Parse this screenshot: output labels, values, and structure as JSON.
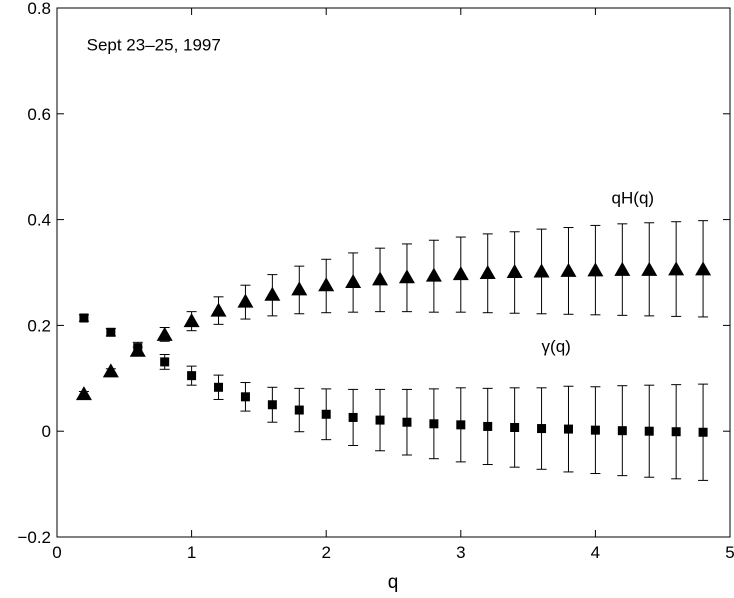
{
  "chart_data": {
    "type": "scatter",
    "title": "",
    "xlabel": "q",
    "ylabel": "",
    "xlim": [
      0,
      5
    ],
    "ylim": [
      -0.2,
      0.8
    ],
    "grid": false,
    "x_ticks": [
      0,
      1,
      2,
      3,
      4,
      5
    ],
    "x_tick_labels": [
      "0",
      "1",
      "2",
      "3",
      "4",
      "5"
    ],
    "y_ticks": [
      -0.2,
      0,
      0.2,
      0.4,
      0.6,
      0.8
    ],
    "y_tick_labels": [
      "−0.2",
      "0",
      "0.2",
      "0.4",
      "0.6",
      "0.8"
    ],
    "annotations": [
      {
        "text": "Sept 23–25, 1997",
        "x": 0.22,
        "y": 0.72
      },
      {
        "text": "qH(q)",
        "x": 4.12,
        "y": 0.43
      },
      {
        "text": "γ(q)",
        "x": 3.6,
        "y": 0.15
      }
    ],
    "x": [
      0.2,
      0.4,
      0.6,
      0.8,
      1.0,
      1.2,
      1.4,
      1.6,
      1.8,
      2.0,
      2.2,
      2.4,
      2.6,
      2.8,
      3.0,
      3.2,
      3.4,
      3.6,
      3.8,
      4.0,
      4.2,
      4.4,
      4.6,
      4.8
    ],
    "series": [
      {
        "name": "qH(q)",
        "marker": "triangle",
        "values": [
          0.07,
          0.113,
          0.152,
          0.182,
          0.208,
          0.228,
          0.245,
          0.258,
          0.268,
          0.276,
          0.282,
          0.287,
          0.291,
          0.294,
          0.297,
          0.299,
          0.301,
          0.302,
          0.303,
          0.304,
          0.305,
          0.305,
          0.306,
          0.306
        ],
        "err_low": [
          0.065,
          0.108,
          0.145,
          0.17,
          0.19,
          0.202,
          0.212,
          0.218,
          0.222,
          0.224,
          0.225,
          0.226,
          0.226,
          0.225,
          0.225,
          0.224,
          0.223,
          0.222,
          0.221,
          0.22,
          0.219,
          0.218,
          0.217,
          0.216
        ],
        "err_high": [
          0.075,
          0.118,
          0.159,
          0.196,
          0.226,
          0.254,
          0.276,
          0.296,
          0.312,
          0.325,
          0.337,
          0.346,
          0.354,
          0.361,
          0.367,
          0.373,
          0.377,
          0.382,
          0.385,
          0.389,
          0.392,
          0.394,
          0.396,
          0.398
        ]
      },
      {
        "name": "γ(q)",
        "marker": "square",
        "values": [
          0.214,
          0.187,
          0.158,
          0.131,
          0.105,
          0.083,
          0.065,
          0.05,
          0.04,
          0.032,
          0.026,
          0.021,
          0.017,
          0.014,
          0.012,
          0.009,
          0.007,
          0.005,
          0.004,
          0.002,
          0.001,
          0.0,
          -0.001,
          -0.002
        ],
        "err_low": [
          0.208,
          0.18,
          0.148,
          0.117,
          0.087,
          0.06,
          0.038,
          0.017,
          -0.001,
          -0.016,
          -0.027,
          -0.037,
          -0.045,
          -0.052,
          -0.058,
          -0.063,
          -0.068,
          -0.072,
          -0.077,
          -0.08,
          -0.084,
          -0.087,
          -0.09,
          -0.093
        ],
        "err_high": [
          0.22,
          0.194,
          0.168,
          0.145,
          0.123,
          0.106,
          0.092,
          0.083,
          0.081,
          0.08,
          0.079,
          0.079,
          0.079,
          0.08,
          0.082,
          0.081,
          0.082,
          0.082,
          0.085,
          0.084,
          0.086,
          0.087,
          0.088,
          0.089
        ]
      }
    ]
  }
}
